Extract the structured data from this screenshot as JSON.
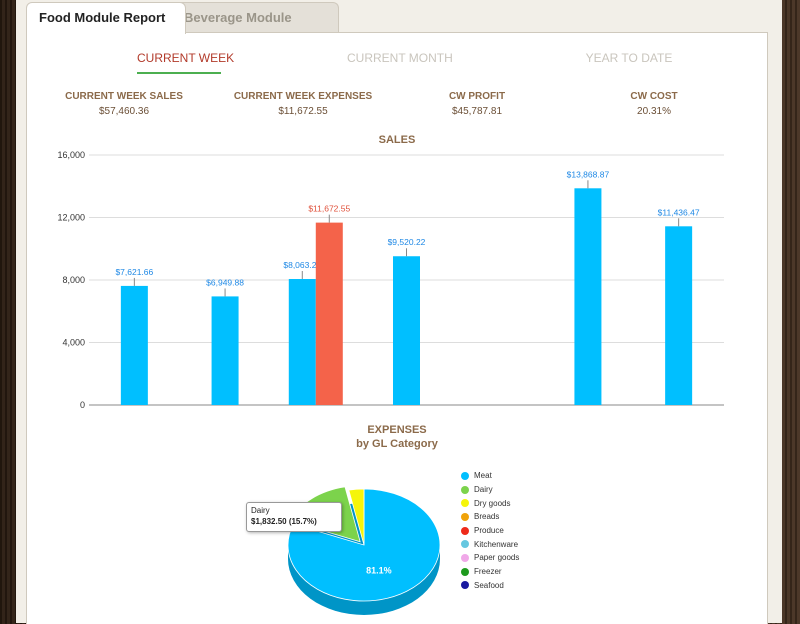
{
  "tabs": [
    {
      "label": "Food Module Report",
      "active": true
    },
    {
      "label": "Beverage Module Report",
      "active": false
    }
  ],
  "periods": [
    {
      "label": "CURRENT WEEK",
      "active": true
    },
    {
      "label": "CURRENT MONTH",
      "active": false
    },
    {
      "label": "YEAR TO DATE",
      "active": false
    }
  ],
  "kpis": [
    {
      "label": "CURRENT WEEK SALES",
      "value": "$57,460.36"
    },
    {
      "label": "CURRENT WEEK EXPENSES",
      "value": "$11,672.55"
    },
    {
      "label": "CW PROFIT",
      "value": "$45,787.81"
    },
    {
      "label": "CW COST",
      "value": "20.31%"
    }
  ],
  "sales_chart": {
    "title": "SALES"
  },
  "expenses_chart": {
    "title_line1": "EXPENSES",
    "title_line2": "by GL Category",
    "tooltip_title": "Dairy",
    "tooltip_value": "$1,832.50 (15.7%)"
  },
  "chart_data": [
    {
      "type": "bar",
      "title": "SALES",
      "ylim": [
        0,
        16000
      ],
      "yticks": [
        "0",
        "4,000",
        "8,000",
        "12,000",
        "16,000"
      ],
      "grid": true,
      "series": [
        {
          "name": "Sales",
          "color": "#00bfff",
          "values": [
            7621.66,
            6949.88,
            8063.26,
            9520.22,
            null,
            13868.87,
            11436.47
          ],
          "labels": [
            "$7,621.66",
            "$6,949.88",
            "$8,063.26",
            "$9,520.22",
            "",
            "$13,868.87",
            "$11,436.47"
          ]
        },
        {
          "name": "Expenses",
          "color": "#f4634a",
          "values": [
            null,
            null,
            11672.55,
            null,
            null,
            null,
            null
          ],
          "labels": [
            "",
            "",
            "$11,672.55",
            "",
            "",
            "",
            ""
          ]
        }
      ]
    },
    {
      "type": "pie",
      "title": "EXPENSES",
      "subtitle": "by GL Category",
      "slices": [
        {
          "name": "Meat",
          "color": "#00bfff",
          "percent": 81.1,
          "label": "81.1%"
        },
        {
          "name": "Dairy",
          "color": "#7cd34c",
          "percent": 15.7,
          "label": ""
        },
        {
          "name": "Dry goods",
          "color": "#f5f50a",
          "percent": 3.2,
          "label": ""
        },
        {
          "name": "Breads",
          "color": "#f0a30a",
          "percent": 0,
          "label": ""
        },
        {
          "name": "Produce",
          "color": "#ee2a1a",
          "percent": 0,
          "label": ""
        },
        {
          "name": "Kitchenware",
          "color": "#66c7e0",
          "percent": 0,
          "label": ""
        },
        {
          "name": "Paper goods",
          "color": "#f0a8e8",
          "percent": 0,
          "label": ""
        },
        {
          "name": "Freezer",
          "color": "#1e9a1e",
          "percent": 0,
          "label": ""
        },
        {
          "name": "Seafood",
          "color": "#1a1aa0",
          "percent": 0,
          "label": ""
        }
      ],
      "legend_position": "right"
    }
  ]
}
